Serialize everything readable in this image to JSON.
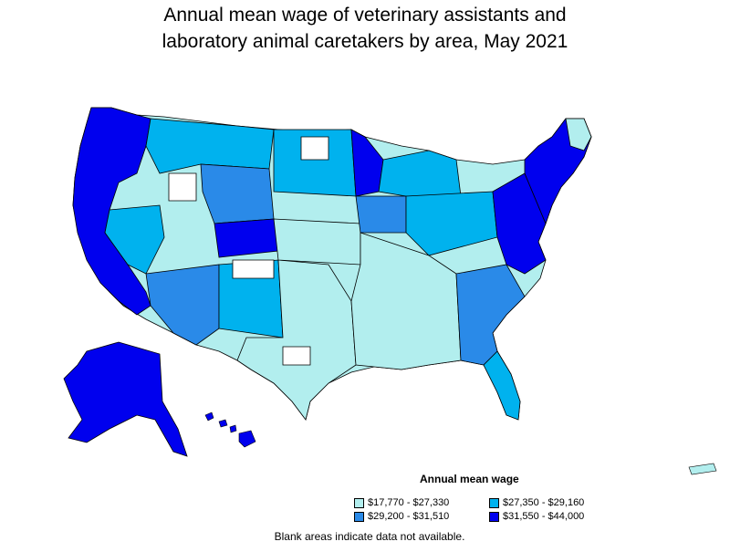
{
  "title": {
    "line1": "Annual mean wage of veterinary assistants and",
    "line2": "laboratory animal caretakers by area, May 2021"
  },
  "legend": {
    "title": "Annual mean wage",
    "items": [
      {
        "label": "$17,770 - $27,330",
        "color": "#b2eeee"
      },
      {
        "label": "$27,350 - $29,160",
        "color": "#00b2ee"
      },
      {
        "label": "$29,200 - $31,510",
        "color": "#2a8ae8"
      },
      {
        "label": "$31,550 - $44,000",
        "color": "#0000ee"
      }
    ]
  },
  "note": "Blank areas indicate data not available.",
  "colors": {
    "border": "#000000",
    "blank": "#ffffff"
  }
}
